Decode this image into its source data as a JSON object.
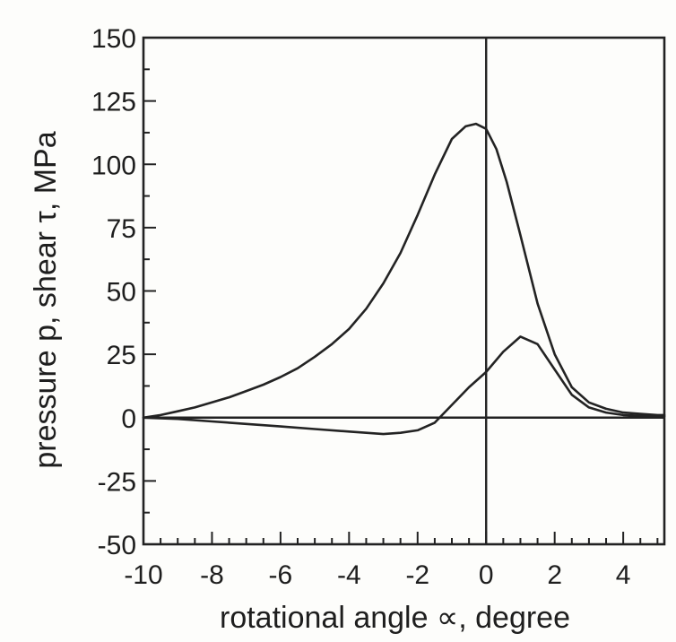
{
  "chart_data": {
    "type": "line",
    "title": "",
    "xlabel": "rotational angle ∝, degree",
    "ylabel": "pressure p, shear τ, MPa",
    "xlim": [
      -10,
      5.2
    ],
    "ylim": [
      -50,
      150
    ],
    "xticks": [
      -10,
      -8,
      -6,
      -4,
      -2,
      0,
      2,
      4
    ],
    "xtick_labels": [
      "-10",
      "-8",
      "-6",
      "-4",
      "-2",
      "0",
      "2",
      "4"
    ],
    "xtick_minor_step": 0.5,
    "yticks": [
      -50,
      -25,
      0,
      25,
      50,
      75,
      100,
      125,
      150
    ],
    "ytick_labels": [
      "-50",
      "-25",
      "0",
      "25",
      "50",
      "75",
      "100",
      "125",
      "150"
    ],
    "ytick_minor_step": 12.5,
    "grid": false,
    "legend": "none",
    "reference_lines": {
      "x": 0,
      "y": 0
    },
    "line_color": "#232323",
    "series": [
      {
        "x": [
          -10,
          -9.5,
          -9,
          -8.5,
          -8,
          -7.5,
          -7,
          -6.5,
          -6,
          -5.5,
          -5,
          -4.5,
          -4,
          -3.5,
          -3,
          -2.5,
          -2,
          -1.5,
          -1,
          -0.6,
          -0.3,
          0,
          0.3,
          0.6,
          1,
          1.5,
          2,
          2.5,
          3,
          3.5,
          4,
          4.5,
          5,
          5.2
        ],
        "y": [
          0,
          1,
          2.5,
          4,
          6,
          8,
          10.5,
          13,
          16,
          19.5,
          24,
          29,
          35,
          43,
          53,
          65,
          80,
          96,
          110,
          115,
          116,
          114,
          106,
          93,
          72,
          45,
          25,
          12,
          6,
          3.5,
          2,
          1.5,
          1,
          1
        ]
      },
      {
        "x": [
          -10,
          -9,
          -8,
          -7,
          -6,
          -5,
          -4,
          -3.5,
          -3,
          -2.5,
          -2,
          -1.5,
          -1,
          -0.5,
          0,
          0.5,
          1,
          1.5,
          2,
          2.5,
          3,
          3.5,
          4,
          5,
          5.2
        ],
        "y": [
          0,
          -0.5,
          -1.5,
          -2.5,
          -3.5,
          -4.5,
          -5.5,
          -6,
          -6.5,
          -6,
          -5,
          -2,
          5,
          12,
          18,
          26,
          32,
          29,
          19,
          9,
          4,
          2,
          1,
          0.5,
          0.5
        ]
      }
    ]
  }
}
